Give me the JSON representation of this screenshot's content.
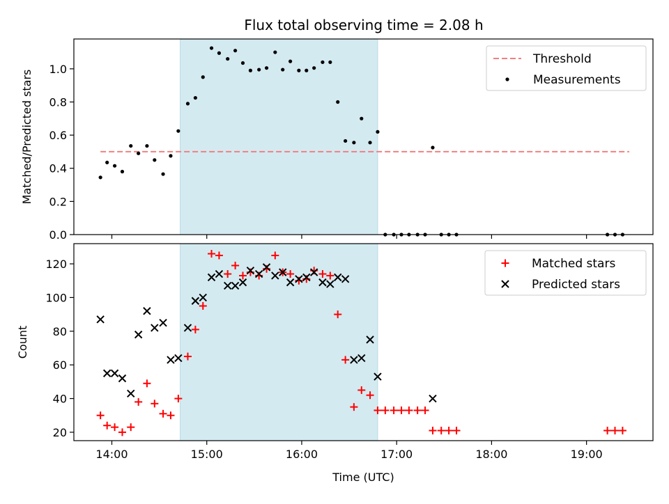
{
  "chart_data": {
    "title": "Flux total observing time = 2.08 h",
    "xlabel": "Time (UTC)",
    "x_unit": "hours (UTC)",
    "xlim": [
      13.6,
      19.7
    ],
    "xtick_values": [
      14,
      15,
      16,
      17,
      18,
      19
    ],
    "xtick_labels": [
      "14:00",
      "15:00",
      "16:00",
      "17:00",
      "18:00",
      "19:00"
    ],
    "shaded_interval": {
      "start": 14.72,
      "end": 16.8,
      "color": "#d4eaf1"
    },
    "panels": [
      {
        "type": "scatter",
        "ylabel": "Matched/Predicted stars",
        "ylim": [
          0,
          1.18
        ],
        "ytick_values": [
          0,
          0.2,
          0.4,
          0.6,
          0.8,
          1.0
        ],
        "ytick_labels": [
          "0.0",
          "0.2",
          "0.4",
          "0.6",
          "0.8",
          "1.0"
        ],
        "legend_position": "top-right",
        "threshold": {
          "name": "Threshold",
          "value": 0.5,
          "x_start": 13.88,
          "x_end": 19.45,
          "color": "#f08080"
        },
        "series": [
          {
            "name": "Measurements",
            "marker": "dot",
            "color": "#000000",
            "points": [
              [
                13.88,
                0.345
              ],
              [
                13.95,
                0.435
              ],
              [
                14.03,
                0.415
              ],
              [
                14.11,
                0.38
              ],
              [
                14.2,
                0.535
              ],
              [
                14.28,
                0.49
              ],
              [
                14.37,
                0.535
              ],
              [
                14.45,
                0.45
              ],
              [
                14.54,
                0.365
              ],
              [
                14.62,
                0.475
              ],
              [
                14.7,
                0.625
              ],
              [
                14.8,
                0.79
              ],
              [
                14.88,
                0.825
              ],
              [
                14.96,
                0.95
              ],
              [
                15.05,
                1.125
              ],
              [
                15.13,
                1.095
              ],
              [
                15.22,
                1.06
              ],
              [
                15.3,
                1.11
              ],
              [
                15.38,
                1.035
              ],
              [
                15.46,
                0.99
              ],
              [
                15.55,
                0.995
              ],
              [
                15.63,
                1.005
              ],
              [
                15.72,
                1.1
              ],
              [
                15.8,
                0.995
              ],
              [
                15.88,
                1.045
              ],
              [
                15.97,
                0.99
              ],
              [
                16.05,
                0.99
              ],
              [
                16.13,
                1.005
              ],
              [
                16.22,
                1.04
              ],
              [
                16.3,
                1.04
              ],
              [
                16.38,
                0.8
              ],
              [
                16.46,
                0.565
              ],
              [
                16.55,
                0.555
              ],
              [
                16.63,
                0.7
              ],
              [
                16.72,
                0.555
              ],
              [
                16.8,
                0.62
              ],
              [
                16.88,
                0
              ],
              [
                16.97,
                0
              ],
              [
                17.05,
                0
              ],
              [
                17.13,
                0
              ],
              [
                17.22,
                0
              ],
              [
                17.3,
                0
              ],
              [
                17.38,
                0.525
              ],
              [
                17.47,
                0
              ],
              [
                17.55,
                0
              ],
              [
                17.63,
                0
              ],
              [
                19.22,
                0
              ],
              [
                19.3,
                0
              ],
              [
                19.38,
                0
              ]
            ]
          }
        ]
      },
      {
        "type": "scatter",
        "ylabel": "Count",
        "ylim": [
          15,
          132
        ],
        "ytick_values": [
          20,
          40,
          60,
          80,
          100,
          120
        ],
        "ytick_labels": [
          "20",
          "40",
          "60",
          "80",
          "100",
          "120"
        ],
        "legend_position": "top-right",
        "series": [
          {
            "name": "Matched stars",
            "marker": "plus",
            "color": "#ff0000",
            "points": [
              [
                13.88,
                30
              ],
              [
                13.95,
                24
              ],
              [
                14.03,
                23
              ],
              [
                14.11,
                20
              ],
              [
                14.2,
                23
              ],
              [
                14.28,
                38
              ],
              [
                14.37,
                49
              ],
              [
                14.45,
                37
              ],
              [
                14.54,
                31
              ],
              [
                14.62,
                30
              ],
              [
                14.7,
                40
              ],
              [
                14.8,
                65
              ],
              [
                14.88,
                81
              ],
              [
                14.96,
                95
              ],
              [
                15.05,
                126
              ],
              [
                15.13,
                125
              ],
              [
                15.22,
                114
              ],
              [
                15.3,
                119
              ],
              [
                15.38,
                113
              ],
              [
                15.46,
                115
              ],
              [
                15.55,
                113
              ],
              [
                15.63,
                117
              ],
              [
                15.72,
                125
              ],
              [
                15.8,
                115
              ],
              [
                15.88,
                114
              ],
              [
                15.97,
                110
              ],
              [
                16.05,
                111
              ],
              [
                16.13,
                116
              ],
              [
                16.22,
                114
              ],
              [
                16.3,
                113
              ],
              [
                16.38,
                90
              ],
              [
                16.46,
                63
              ],
              [
                16.55,
                35
              ],
              [
                16.63,
                45
              ],
              [
                16.72,
                42
              ],
              [
                16.8,
                33
              ],
              [
                16.88,
                33
              ],
              [
                16.97,
                33
              ],
              [
                17.05,
                33
              ],
              [
                17.13,
                33
              ],
              [
                17.22,
                33
              ],
              [
                17.3,
                33
              ],
              [
                17.38,
                21
              ],
              [
                17.47,
                21
              ],
              [
                17.55,
                21
              ],
              [
                17.63,
                21
              ],
              [
                19.22,
                21
              ],
              [
                19.3,
                21
              ],
              [
                19.38,
                21
              ]
            ]
          },
          {
            "name": "Predicted stars",
            "marker": "x",
            "color": "#000000",
            "points": [
              [
                13.88,
                87
              ],
              [
                13.95,
                55
              ],
              [
                14.03,
                55
              ],
              [
                14.11,
                52
              ],
              [
                14.2,
                43
              ],
              [
                14.28,
                78
              ],
              [
                14.37,
                92
              ],
              [
                14.45,
                82
              ],
              [
                14.54,
                85
              ],
              [
                14.62,
                63
              ],
              [
                14.7,
                64
              ],
              [
                14.8,
                82
              ],
              [
                14.88,
                98
              ],
              [
                14.96,
                100
              ],
              [
                15.05,
                112
              ],
              [
                15.13,
                114
              ],
              [
                15.22,
                107
              ],
              [
                15.3,
                107
              ],
              [
                15.38,
                109
              ],
              [
                15.46,
                116
              ],
              [
                15.55,
                114
              ],
              [
                15.63,
                118
              ],
              [
                15.72,
                113
              ],
              [
                15.8,
                115
              ],
              [
                15.88,
                109
              ],
              [
                15.97,
                111
              ],
              [
                16.05,
                112
              ],
              [
                16.13,
                115
              ],
              [
                16.22,
                109
              ],
              [
                16.3,
                108
              ],
              [
                16.38,
                112
              ],
              [
                16.46,
                111
              ],
              [
                16.55,
                63
              ],
              [
                16.63,
                64
              ],
              [
                16.72,
                75
              ],
              [
                16.8,
                53
              ],
              [
                17.38,
                40
              ]
            ]
          }
        ]
      }
    ]
  }
}
